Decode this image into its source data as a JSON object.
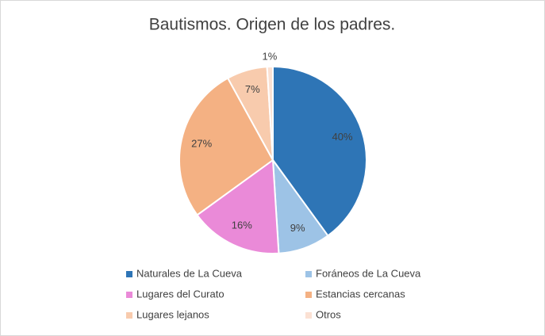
{
  "chart_data": {
    "type": "pie",
    "title": "Bautismos. Origen de los padres.",
    "categories": [
      "Naturales de La Cueva",
      "Foráneos de La Cueva",
      "Lugares del Curato",
      "Estancias cercanas",
      "Lugares lejanos",
      "Otros"
    ],
    "values": [
      40,
      9,
      16,
      27,
      7,
      1
    ],
    "value_labels": [
      "40%",
      "9%",
      "16%",
      "27%",
      "7%",
      "1%"
    ],
    "colors": [
      "#2e75b6",
      "#9dc3e6",
      "#ea8ad8",
      "#f4b183",
      "#f8cbad",
      "#fbe1d3"
    ],
    "legend": "bottom"
  }
}
